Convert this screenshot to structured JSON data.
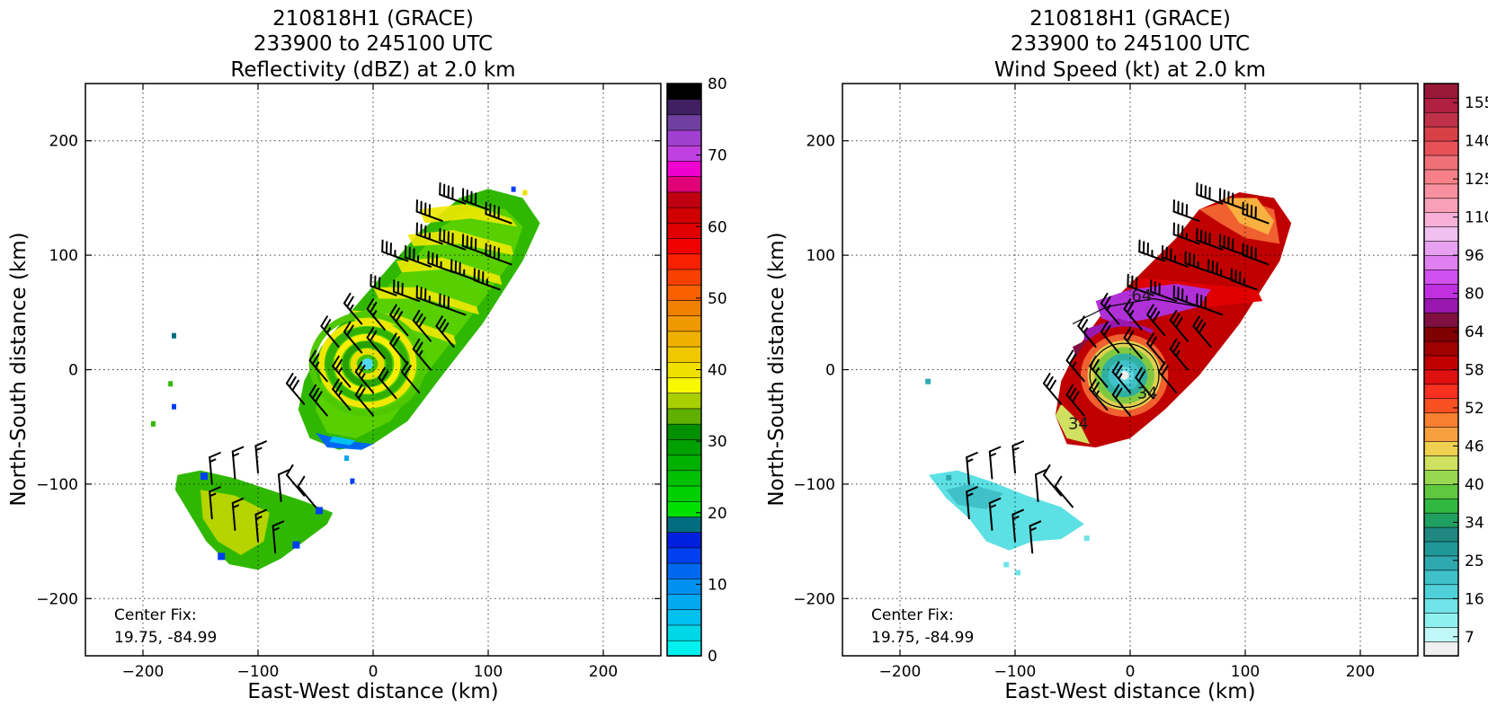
{
  "chart_data": [
    {
      "type": "heatmap",
      "id": "left",
      "title": [
        "210818H1 (GRACE)",
        "233900 to 245100 UTC",
        "Reflectivity (dBZ) at 2.0 km"
      ],
      "xlabel": "East-West distance (km)",
      "ylabel": "North-South distance (km)",
      "xlim": [
        -250,
        250
      ],
      "ylim": [
        -250,
        250
      ],
      "xticks": [
        -200,
        -100,
        0,
        100,
        200
      ],
      "yticks": [
        -200,
        -100,
        0,
        100,
        200
      ],
      "xtick_labels": [
        "−200",
        "−100",
        "0",
        "100",
        "200"
      ],
      "ytick_labels": [
        "−200",
        "−100",
        "0",
        "100",
        "200"
      ],
      "grid": true,
      "annotation": [
        "Center Fix:",
        "19.75, -84.99"
      ],
      "colorbar": {
        "min": 0,
        "max": 80,
        "ticks": [
          0,
          10,
          20,
          30,
          40,
          50,
          60,
          70,
          80
        ],
        "colors": [
          "#00f0f0",
          "#00d8e8",
          "#00c0f0",
          "#00a8f0",
          "#0090f0",
          "#0068f0",
          "#0040f0",
          "#0020e0",
          "#006e80",
          "#00e000",
          "#00d000",
          "#00c000",
          "#00b000",
          "#00a000",
          "#009000",
          "#60b000",
          "#a8d000",
          "#f8f800",
          "#f0e000",
          "#f0c800",
          "#f0b000",
          "#f09800",
          "#f08000",
          "#f86000",
          "#f84000",
          "#f82000",
          "#f00000",
          "#e00000",
          "#d00000",
          "#c00010",
          "#e00078",
          "#f000d0",
          "#c040e0",
          "#a040d0",
          "#7040a0",
          "#402060",
          "#000000"
        ]
      },
      "rings": {
        "center_x": 0,
        "center_y": 0,
        "colors": [
          "#50c800",
          "#f0e800",
          "#30b000",
          "#f8f000",
          "#28a000",
          "#e8e000",
          "#40c000"
        ]
      },
      "barbs": [
        [
          80,
          145,
          40
        ],
        [
          100,
          140,
          40
        ],
        [
          120,
          128,
          40
        ],
        [
          60,
          130,
          40
        ],
        [
          60,
          110,
          35
        ],
        [
          80,
          105,
          40
        ],
        [
          100,
          100,
          40
        ],
        [
          120,
          92,
          40
        ],
        [
          30,
          95,
          35
        ],
        [
          50,
          90,
          35
        ],
        [
          70,
          85,
          35
        ],
        [
          90,
          78,
          35
        ],
        [
          110,
          70,
          35
        ],
        [
          20,
          65,
          30
        ],
        [
          40,
          60,
          30
        ],
        [
          60,
          55,
          35
        ],
        [
          80,
          48,
          30
        ],
        [
          -10,
          40,
          25
        ],
        [
          10,
          35,
          25
        ],
        [
          30,
          30,
          30
        ],
        [
          50,
          25,
          30
        ],
        [
          70,
          20,
          30
        ],
        [
          -30,
          20,
          25
        ],
        [
          -10,
          15,
          20
        ],
        [
          10,
          10,
          20
        ],
        [
          30,
          5,
          20
        ],
        [
          50,
          0,
          25
        ],
        [
          -40,
          -10,
          25
        ],
        [
          -20,
          -15,
          25
        ],
        [
          0,
          -20,
          25
        ],
        [
          20,
          -25,
          20
        ],
        [
          40,
          -20,
          20
        ],
        [
          -60,
          -30,
          30
        ],
        [
          -40,
          -40,
          30
        ],
        [
          -20,
          -35,
          25
        ],
        [
          0,
          -40,
          20
        ],
        [
          -140,
          -100,
          15
        ],
        [
          -120,
          -95,
          15
        ],
        [
          -100,
          -90,
          15
        ],
        [
          -80,
          -115,
          10
        ],
        [
          -60,
          -110,
          10
        ],
        [
          -50,
          -120,
          10
        ],
        [
          -140,
          -130,
          15
        ],
        [
          -120,
          -140,
          15
        ],
        [
          -100,
          -150,
          15
        ],
        [
          -85,
          -160,
          15
        ]
      ]
    },
    {
      "type": "heatmap",
      "id": "right",
      "title": [
        "210818H1 (GRACE)",
        "233900 to 245100 UTC",
        "Wind Speed (kt) at 2.0 km"
      ],
      "xlabel": "East-West distance (km)",
      "ylabel": "North-South distance (km)",
      "xlim": [
        -250,
        250
      ],
      "ylim": [
        -250,
        250
      ],
      "xticks": [
        -200,
        -100,
        0,
        100,
        200
      ],
      "yticks": [
        -200,
        -100,
        0,
        100,
        200
      ],
      "xtick_labels": [
        "−200",
        "−100",
        "0",
        "100",
        "200"
      ],
      "ytick_labels": [
        "−200",
        "−100",
        "0",
        "100",
        "200"
      ],
      "grid": true,
      "annotation": [
        "Center Fix:",
        "19.75, -84.99"
      ],
      "contour_labels": [
        {
          "text": "34",
          "x": 15,
          "y": -25
        },
        {
          "text": "34",
          "x": -45,
          "y": -52
        },
        {
          "text": "64",
          "x": 10,
          "y": 60
        }
      ],
      "colorbar": {
        "ticks": [
          7,
          16,
          25,
          34,
          40,
          46,
          52,
          58,
          64,
          80,
          96,
          110,
          125,
          140,
          155
        ],
        "colors": [
          "#f0f0f0",
          "#c0f8f8",
          "#90f0f0",
          "#70e4e8",
          "#50d0d8",
          "#40c0c8",
          "#30a8b0",
          "#209898",
          "#208880",
          "#20a060",
          "#30b840",
          "#60c840",
          "#98d850",
          "#d0e060",
          "#f0d050",
          "#f8a040",
          "#f88030",
          "#f85020",
          "#f83020",
          "#e01010",
          "#c00000",
          "#a00000",
          "#800000",
          "#801040",
          "#9818b0",
          "#c030e0",
          "#d050f0",
          "#e080f0",
          "#e8a0f0",
          "#f0c0f0",
          "#f8b0d8",
          "#f8a0b8",
          "#f890a0",
          "#f88088",
          "#f07078",
          "#e85058",
          "#d84048",
          "#c03048",
          "#b02040",
          "#981838"
        ]
      },
      "rings": {
        "center_x": 0,
        "center_y": 0
      },
      "barbs": [
        [
          80,
          145,
          40
        ],
        [
          100,
          140,
          40
        ],
        [
          120,
          128,
          40
        ],
        [
          60,
          130,
          40
        ],
        [
          60,
          110,
          35
        ],
        [
          80,
          105,
          40
        ],
        [
          100,
          100,
          40
        ],
        [
          120,
          92,
          40
        ],
        [
          30,
          95,
          35
        ],
        [
          50,
          90,
          35
        ],
        [
          70,
          85,
          35
        ],
        [
          90,
          78,
          35
        ],
        [
          110,
          70,
          35
        ],
        [
          20,
          65,
          30
        ],
        [
          40,
          60,
          30
        ],
        [
          60,
          55,
          35
        ],
        [
          80,
          48,
          30
        ],
        [
          -10,
          40,
          25
        ],
        [
          10,
          35,
          25
        ],
        [
          30,
          30,
          30
        ],
        [
          50,
          25,
          30
        ],
        [
          70,
          20,
          30
        ],
        [
          -30,
          20,
          25
        ],
        [
          -10,
          15,
          20
        ],
        [
          10,
          10,
          20
        ],
        [
          30,
          5,
          20
        ],
        [
          50,
          0,
          25
        ],
        [
          -40,
          -10,
          25
        ],
        [
          -20,
          -15,
          25
        ],
        [
          0,
          -20,
          25
        ],
        [
          20,
          -25,
          20
        ],
        [
          40,
          -20,
          20
        ],
        [
          -60,
          -30,
          30
        ],
        [
          -40,
          -40,
          30
        ],
        [
          -20,
          -35,
          25
        ],
        [
          0,
          -40,
          20
        ],
        [
          -140,
          -100,
          15
        ],
        [
          -120,
          -95,
          15
        ],
        [
          -100,
          -90,
          15
        ],
        [
          -80,
          -115,
          10
        ],
        [
          -60,
          -110,
          10
        ],
        [
          -50,
          -120,
          10
        ],
        [
          -140,
          -130,
          15
        ],
        [
          -120,
          -140,
          15
        ],
        [
          -100,
          -150,
          15
        ],
        [
          -85,
          -160,
          15
        ]
      ]
    }
  ]
}
